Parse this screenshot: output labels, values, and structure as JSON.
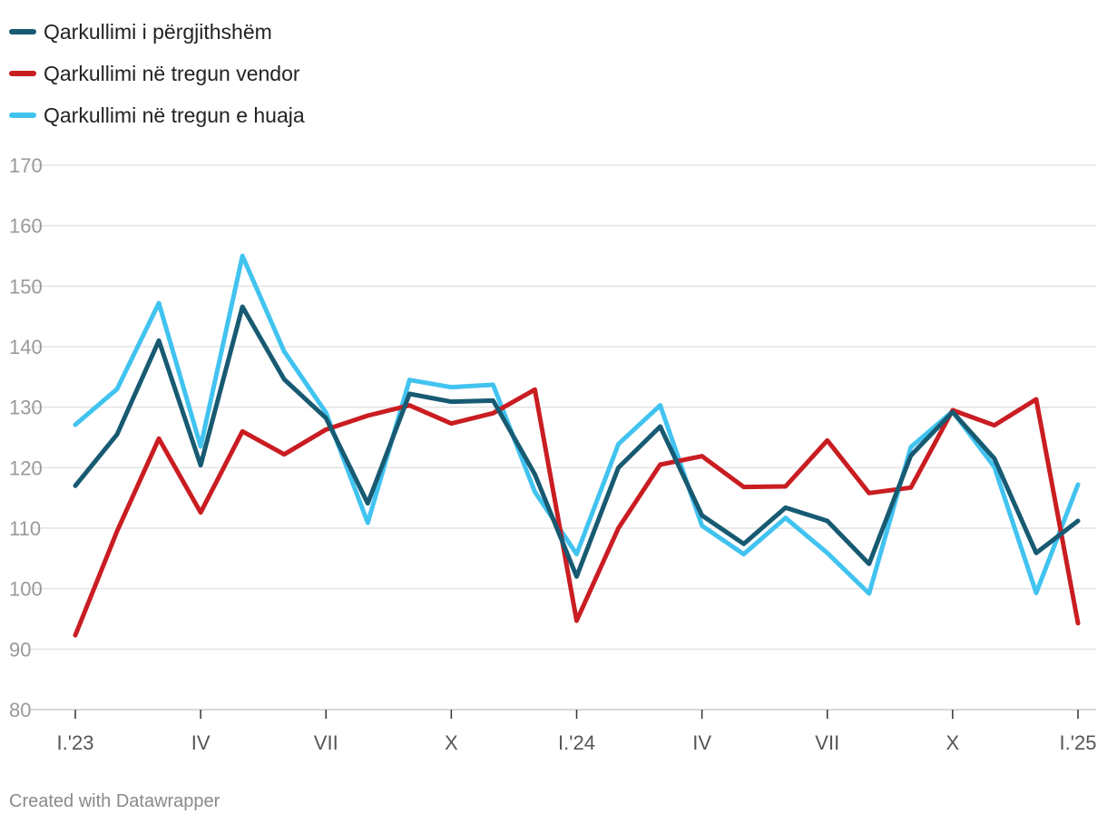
{
  "chart_data": {
    "type": "line",
    "title": "",
    "xlabel": "",
    "ylabel": "",
    "ylim": [
      80,
      170
    ],
    "yticks": [
      80,
      90,
      100,
      110,
      120,
      130,
      140,
      150,
      160,
      170
    ],
    "x": [
      "2023-01",
      "2023-02",
      "2023-03",
      "2023-04",
      "2023-05",
      "2023-06",
      "2023-07",
      "2023-08",
      "2023-09",
      "2023-10",
      "2023-11",
      "2023-12",
      "2024-01",
      "2024-02",
      "2024-03",
      "2024-04",
      "2024-05",
      "2024-06",
      "2024-07",
      "2024-08",
      "2024-09",
      "2024-10",
      "2024-11",
      "2024-12",
      "2025-01"
    ],
    "xticks": [
      {
        "index": 0,
        "label": "I.'23"
      },
      {
        "index": 3,
        "label": "IV"
      },
      {
        "index": 6,
        "label": "VII"
      },
      {
        "index": 9,
        "label": "X"
      },
      {
        "index": 12,
        "label": "I.'24"
      },
      {
        "index": 15,
        "label": "IV"
      },
      {
        "index": 18,
        "label": "VII"
      },
      {
        "index": 21,
        "label": "X"
      },
      {
        "index": 24,
        "label": "I.'25"
      }
    ],
    "series": [
      {
        "name": "Qarkullimi në tregun e huaja",
        "color": "#41c3f0",
        "values": [
          127.1,
          133.0,
          147.2,
          123.5,
          155.0,
          139.2,
          129.1,
          110.9,
          134.5,
          133.3,
          133.7,
          116.0,
          105.7,
          123.9,
          130.3,
          110.4,
          105.7,
          111.7,
          105.9,
          99.2,
          123.4,
          129.3,
          120.1,
          99.3,
          117.2
        ]
      },
      {
        "name": "Qarkullimi në tregun vendor",
        "color": "#c91d22",
        "values": [
          92.3,
          109.5,
          124.8,
          112.6,
          126.0,
          122.2,
          126.3,
          128.6,
          130.3,
          127.3,
          129.0,
          132.9,
          94.7,
          110.0,
          120.5,
          121.9,
          116.8,
          116.9,
          124.5,
          115.8,
          116.7,
          129.5,
          127.0,
          131.3,
          94.3
        ]
      },
      {
        "name": "Qarkullimi i përgjithshëm",
        "color": "#175a72",
        "values": [
          117.0,
          125.5,
          141.0,
          120.4,
          146.6,
          134.6,
          128.2,
          114.1,
          132.2,
          130.9,
          131.1,
          118.9,
          102.0,
          120.0,
          126.8,
          112.1,
          107.4,
          113.4,
          111.2,
          104.1,
          122.0,
          129.2,
          121.5,
          105.9,
          111.2
        ]
      }
    ]
  },
  "legend": [
    {
      "label": "Qarkullimi i përgjithshëm",
      "color": "#175a72"
    },
    {
      "label": "Qarkullimi në tregun vendor",
      "color": "#c91d22"
    },
    {
      "label": "Qarkullimi në tregun e huaja",
      "color": "#41c3f0"
    }
  ],
  "footer": {
    "credit": "Created with Datawrapper"
  }
}
